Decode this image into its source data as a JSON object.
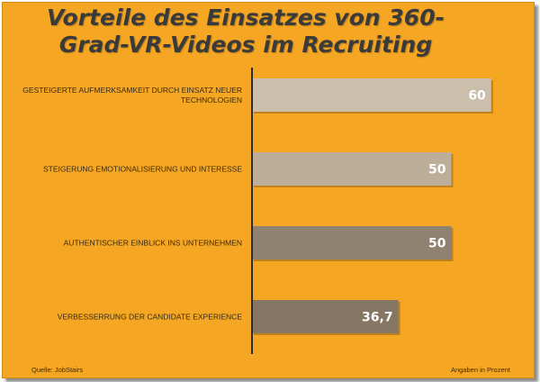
{
  "chart_data": {
    "type": "bar",
    "orientation": "horizontal",
    "title": "Vorteile des Einsatzes von 360-Grad-VR-Videos im Recruiting",
    "title_lines": [
      "Vorteile des Einsatzes von 360-",
      "Grad-VR-Videos im Recruiting"
    ],
    "categories": [
      [
        "GESTEIGERTE AUFMERKSAMKEIT DURCH EINSATZ NEUER",
        "TECHNOLOGIEN"
      ],
      [
        "STEIGERUNG EMOTIONALISIERUNG UND INTERESSE"
      ],
      [
        "AUTHENTISCHER EINBLICK INS UNTERNEHMEN"
      ],
      [
        "VERBESSERRUNG DER CANDIDATE EXPERIENCE"
      ]
    ],
    "values": [
      60,
      50,
      50,
      36.7
    ],
    "value_labels": [
      "60",
      "50",
      "50",
      "36,7"
    ],
    "bar_colors": [
      "#cbbfab",
      "#bcae98",
      "#8f8270",
      "#857764"
    ],
    "xlim": [
      0,
      65
    ],
    "source": "Quelle: JobStairs",
    "unit_note": "Angaben in Prozent"
  }
}
